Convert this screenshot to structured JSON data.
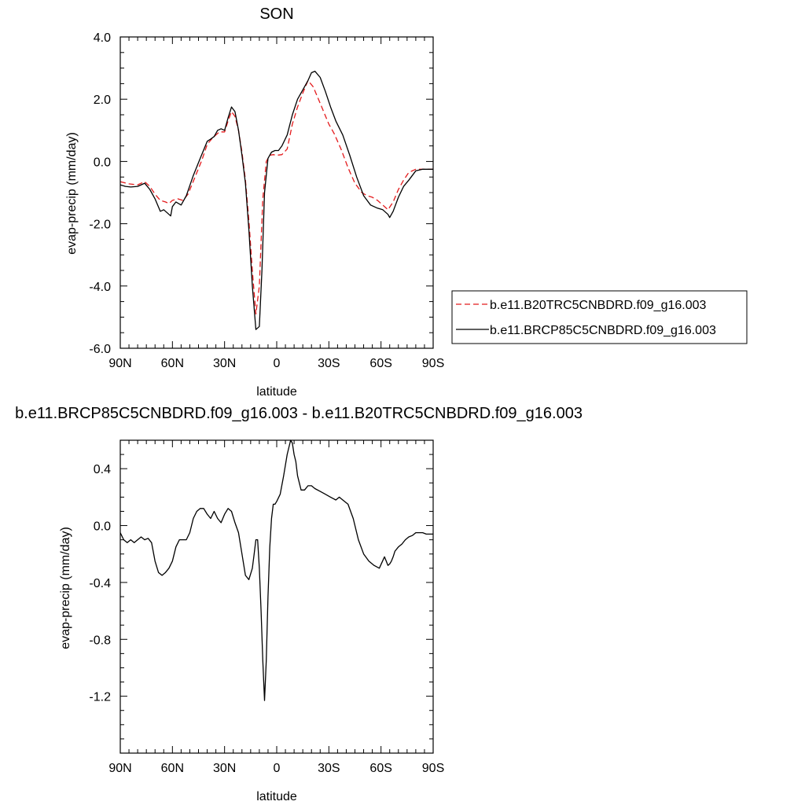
{
  "chart_data": [
    {
      "type": "line",
      "title": "SON",
      "xlabel": "latitude",
      "ylabel": "evap-precip (mm/day)",
      "xlim": [
        90,
        -90
      ],
      "ylim": [
        -6.0,
        4.0
      ],
      "xticks": [
        90,
        60,
        30,
        0,
        -30,
        -60,
        -90
      ],
      "xtick_labels": [
        "90N",
        "60N",
        "30N",
        "0",
        "30S",
        "60S",
        "90S"
      ],
      "yticks": [
        -6.0,
        -4.0,
        -2.0,
        0.0,
        2.0,
        4.0
      ],
      "ytick_labels": [
        "-6.0",
        "-4.0",
        "-2.0",
        "0.0",
        "2.0",
        "4.0"
      ],
      "grid": false,
      "legend_position": "right",
      "series": [
        {
          "name": "b.e11.B20TRC5CNBDRD.f09_g16.003",
          "color": "#e41a1c",
          "style": "dashed",
          "x": [
            90,
            85,
            80,
            76,
            73,
            70,
            67,
            64,
            62,
            60,
            57,
            54,
            51,
            47,
            43,
            40,
            37,
            35,
            33,
            30,
            28,
            26,
            24,
            22,
            20,
            18,
            16,
            14,
            12,
            10,
            8,
            6,
            4,
            2,
            0,
            -3,
            -6,
            -9,
            -12,
            -15,
            -18,
            -21,
            -24,
            -27,
            -30,
            -33,
            -37,
            -41,
            -45,
            -49,
            -52,
            -55,
            -58,
            -61,
            -64,
            -67,
            -70,
            -73,
            -76,
            -80,
            -85,
            -90
          ],
          "y": [
            -0.65,
            -0.72,
            -0.75,
            -0.65,
            -0.8,
            -1.05,
            -1.25,
            -1.3,
            -1.35,
            -1.25,
            -1.2,
            -1.25,
            -1.05,
            -0.5,
            0.05,
            0.55,
            0.75,
            0.85,
            0.95,
            0.95,
            1.3,
            1.6,
            1.45,
            1.0,
            0.3,
            -0.6,
            -1.9,
            -3.5,
            -4.9,
            -4.0,
            -1.2,
            0.0,
            0.2,
            0.22,
            0.2,
            0.22,
            0.4,
            1.2,
            1.75,
            2.2,
            2.6,
            2.4,
            2.0,
            1.6,
            1.2,
            0.9,
            0.4,
            -0.2,
            -0.7,
            -1.0,
            -1.1,
            -1.15,
            -1.25,
            -1.4,
            -1.55,
            -1.3,
            -0.9,
            -0.6,
            -0.35,
            -0.25,
            -0.25,
            -0.25
          ]
        },
        {
          "name": "b.e11.BRCP85C5CNBDRD.f09_g16.003",
          "color": "#000000",
          "style": "solid",
          "x": [
            90,
            87,
            84,
            80,
            76,
            73,
            70,
            67,
            65,
            63,
            61,
            60,
            58,
            55,
            52,
            48,
            44,
            40,
            38,
            36,
            34,
            32,
            30,
            28,
            26,
            24,
            22,
            20,
            18,
            16,
            14,
            12,
            10,
            8.5,
            7,
            5,
            3,
            1,
            -1,
            -3,
            -6,
            -9,
            -12,
            -15,
            -18,
            -20,
            -22,
            -25,
            -28,
            -31,
            -34,
            -38,
            -42,
            -46,
            -50,
            -54,
            -58,
            -61,
            -64,
            -65,
            -67,
            -70,
            -73,
            -76,
            -80,
            -84,
            -87,
            -90
          ],
          "y": [
            -0.75,
            -0.8,
            -0.82,
            -0.8,
            -0.7,
            -0.9,
            -1.2,
            -1.6,
            -1.55,
            -1.65,
            -1.75,
            -1.45,
            -1.3,
            -1.4,
            -1.1,
            -0.45,
            0.1,
            0.65,
            0.72,
            0.8,
            1.0,
            1.05,
            1.0,
            1.4,
            1.75,
            1.6,
            1.0,
            0.2,
            -0.7,
            -2.2,
            -4.0,
            -5.4,
            -5.3,
            -3.5,
            -1.0,
            0.1,
            0.3,
            0.35,
            0.35,
            0.5,
            0.85,
            1.5,
            2.0,
            2.3,
            2.6,
            2.85,
            2.9,
            2.7,
            2.25,
            1.75,
            1.3,
            0.85,
            0.2,
            -0.5,
            -1.1,
            -1.4,
            -1.5,
            -1.55,
            -1.7,
            -1.8,
            -1.6,
            -1.15,
            -0.8,
            -0.6,
            -0.3,
            -0.25,
            -0.25,
            -0.25
          ]
        }
      ]
    },
    {
      "type": "line",
      "title": "b.e11.BRCP85C5CNBDRD.f09_g16.003 - b.e11.B20TRC5CNBDRD.f09_g16.003",
      "xlabel": "latitude",
      "ylabel": "evap-precip (mm/day)",
      "xlim": [
        90,
        -90
      ],
      "ylim": [
        -1.6,
        0.6
      ],
      "xticks": [
        90,
        60,
        30,
        0,
        -30,
        -60,
        -90
      ],
      "xtick_labels": [
        "90N",
        "60N",
        "30N",
        "0",
        "30S",
        "60S",
        "90S"
      ],
      "yticks": [
        -1.2,
        -0.8,
        -0.4,
        0.0,
        0.4
      ],
      "ytick_labels": [
        "-1.2",
        "-0.8",
        "-0.4",
        "0.0",
        "0.4"
      ],
      "grid": false,
      "series": [
        {
          "color": "#000000",
          "style": "solid",
          "x": [
            90,
            88,
            86,
            84,
            82,
            80,
            78,
            76,
            74,
            72,
            70,
            68,
            66,
            64,
            62,
            60,
            58,
            56,
            54,
            52,
            50,
            48,
            46,
            44,
            42,
            40,
            38,
            36,
            34,
            32,
            30,
            28,
            26,
            24,
            22,
            20,
            18,
            16,
            14,
            13,
            12,
            11,
            10,
            9,
            8,
            7,
            6,
            5,
            4,
            3,
            2,
            1,
            0,
            -2,
            -4,
            -6,
            -8,
            -9,
            -10,
            -11,
            -12,
            -14,
            -16,
            -18,
            -20,
            -22,
            -25,
            -28,
            -31,
            -34,
            -36,
            -38,
            -41,
            -44,
            -47,
            -50,
            -53,
            -56,
            -59,
            -62,
            -64,
            -65,
            -66,
            -67,
            -68,
            -70,
            -72,
            -74,
            -76,
            -78,
            -80,
            -82,
            -84,
            -86,
            -88,
            -90
          ],
          "y": [
            -0.05,
            -0.1,
            -0.12,
            -0.1,
            -0.12,
            -0.1,
            -0.08,
            -0.1,
            -0.09,
            -0.12,
            -0.25,
            -0.33,
            -0.35,
            -0.33,
            -0.3,
            -0.25,
            -0.15,
            -0.1,
            -0.1,
            -0.1,
            -0.05,
            0.05,
            0.1,
            0.12,
            0.12,
            0.08,
            0.05,
            0.1,
            0.05,
            0.02,
            0.08,
            0.12,
            0.1,
            0.02,
            -0.05,
            -0.2,
            -0.35,
            -0.38,
            -0.3,
            -0.2,
            -0.1,
            -0.1,
            -0.3,
            -0.6,
            -0.95,
            -1.23,
            -0.95,
            -0.5,
            -0.15,
            0.05,
            0.15,
            0.15,
            0.17,
            0.22,
            0.35,
            0.5,
            0.6,
            0.58,
            0.5,
            0.45,
            0.35,
            0.25,
            0.25,
            0.28,
            0.28,
            0.26,
            0.24,
            0.22,
            0.2,
            0.18,
            0.2,
            0.18,
            0.15,
            0.05,
            -0.1,
            -0.2,
            -0.25,
            -0.28,
            -0.3,
            -0.22,
            -0.28,
            -0.27,
            -0.25,
            -0.22,
            -0.18,
            -0.15,
            -0.13,
            -0.1,
            -0.08,
            -0.07,
            -0.05,
            -0.05,
            -0.05,
            -0.06,
            -0.06,
            -0.06
          ]
        }
      ]
    }
  ]
}
